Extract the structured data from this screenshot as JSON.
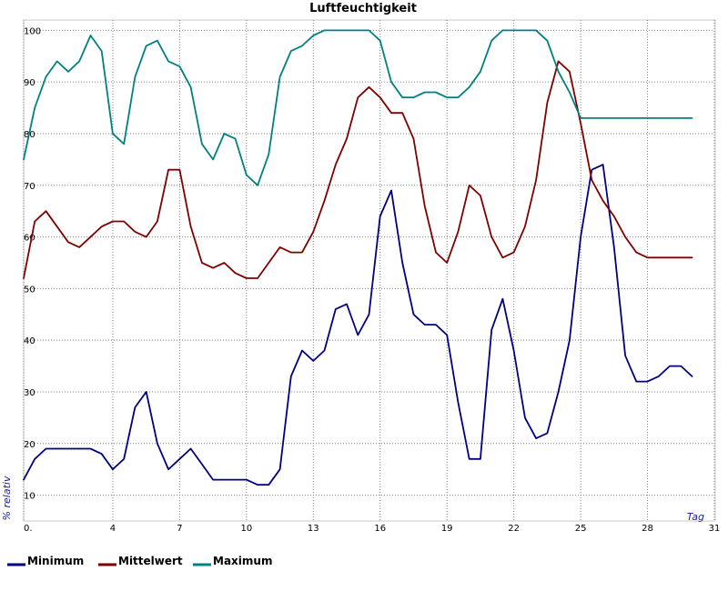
{
  "chart_data": {
    "type": "line",
    "title": "Luftfeuchtigkeit",
    "xlabel": "Tag",
    "ylabel": "% relativ",
    "xlim": [
      0,
      31
    ],
    "ylim": [
      5,
      102
    ],
    "x_ticks": [
      0,
      4,
      7,
      10,
      13,
      16,
      19,
      22,
      25,
      28,
      31
    ],
    "x_tick_labels": [
      "0.",
      "4",
      "7",
      "10",
      "13",
      "16",
      "19",
      "22",
      "25",
      "28",
      "31"
    ],
    "y_ticks": [
      10,
      20,
      30,
      40,
      50,
      60,
      70,
      80,
      90,
      100
    ],
    "grid": true,
    "legend_position": "bottom-left",
    "x": [
      0,
      0.5,
      1,
      1.5,
      2,
      2.5,
      3,
      3.5,
      4,
      4.5,
      5,
      5.5,
      6,
      6.5,
      7,
      7.5,
      8,
      8.5,
      9,
      9.5,
      10,
      10.5,
      11,
      11.5,
      12,
      12.5,
      13,
      13.5,
      14,
      14.5,
      15,
      15.5,
      16,
      16.5,
      17,
      17.5,
      18,
      18.5,
      19,
      19.5,
      20,
      20.5,
      21,
      21.5,
      22,
      22.5,
      23,
      23.5,
      24,
      24.5,
      25,
      25.5,
      26,
      26.5,
      27,
      27.5,
      28,
      28.5,
      29,
      29.5,
      30
    ],
    "series": [
      {
        "name": "Minimum",
        "color": "#000080",
        "values": [
          13,
          17,
          19,
          19,
          19,
          19,
          19,
          18,
          15,
          17,
          27,
          30,
          20,
          15,
          17,
          19,
          16,
          13,
          13,
          13,
          13,
          12,
          12,
          15,
          33,
          38,
          36,
          38,
          46,
          47,
          41,
          45,
          64,
          69,
          55,
          45,
          43,
          43,
          41,
          28,
          17,
          17,
          42,
          48,
          38,
          25,
          21,
          22,
          30,
          40,
          60,
          73,
          74,
          58,
          37,
          32,
          32,
          33,
          35,
          35,
          33
        ]
      },
      {
        "name": "Mittelwert",
        "color": "#800000",
        "values": [
          52,
          63,
          65,
          62,
          59,
          58,
          60,
          62,
          63,
          63,
          61,
          60,
          63,
          73,
          73,
          62,
          55,
          54,
          55,
          53,
          52,
          52,
          55,
          58,
          57,
          57,
          61,
          67,
          74,
          79,
          87,
          89,
          87,
          84,
          84,
          79,
          66,
          57,
          55,
          61,
          70,
          68,
          60,
          56,
          57,
          62,
          71,
          86,
          94,
          92,
          82,
          71,
          67,
          64,
          60,
          57,
          56,
          56,
          56,
          56,
          56
        ]
      },
      {
        "name": "Maximum",
        "color": "#008080",
        "values": [
          75,
          85,
          91,
          94,
          92,
          94,
          99,
          96,
          80,
          78,
          91,
          97,
          98,
          94,
          93,
          89,
          78,
          75,
          80,
          79,
          72,
          70,
          76,
          91,
          96,
          97,
          99,
          100,
          100,
          100,
          100,
          100,
          98,
          90,
          87,
          87,
          88,
          88,
          87,
          87,
          89,
          92,
          98,
          100,
          100,
          100,
          100,
          98,
          92,
          88,
          83,
          83,
          83,
          83,
          83,
          83,
          83,
          83,
          83,
          83,
          83
        ]
      }
    ]
  }
}
